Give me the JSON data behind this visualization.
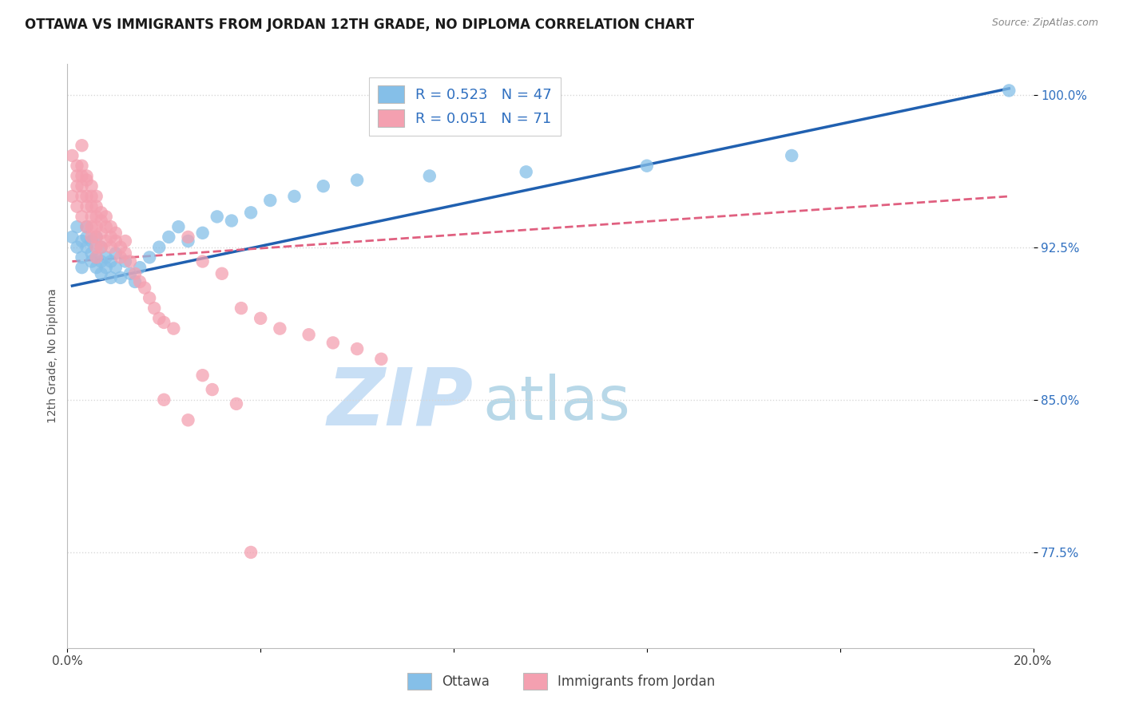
{
  "title": "OTTAWA VS IMMIGRANTS FROM JORDAN 12TH GRADE, NO DIPLOMA CORRELATION CHART",
  "source": "Source: ZipAtlas.com",
  "ylabel": "12th Grade, No Diploma",
  "xlim": [
    0.0,
    0.2
  ],
  "ylim": [
    0.728,
    1.015
  ],
  "yticks": [
    0.775,
    0.85,
    0.925,
    1.0
  ],
  "ytick_labels": [
    "77.5%",
    "85.0%",
    "92.5%",
    "100.0%"
  ],
  "xticks": [
    0.0,
    0.04,
    0.08,
    0.12,
    0.16,
    0.2
  ],
  "xtick_labels": [
    "0.0%",
    "",
    "",
    "",
    "",
    "20.0%"
  ],
  "legend_r_ottawa": "R = 0.523",
  "legend_n_ottawa": "N = 47",
  "legend_r_jordan": "R = 0.051",
  "legend_n_jordan": "N = 71",
  "ottawa_color": "#85bfe8",
  "jordan_color": "#f4a0b0",
  "ottawa_line_color": "#2060b0",
  "jordan_line_color": "#e06080",
  "background_color": "#ffffff",
  "grid_color": "#d8d8d8",
  "title_fontsize": 12,
  "source_fontsize": 9,
  "tick_fontsize": 11,
  "watermark_zip": "ZIP",
  "watermark_atlas": "atlas",
  "watermark_color_zip": "#c8dff5",
  "watermark_color_atlas": "#b8d8e8",
  "ottawa_x": [
    0.001,
    0.002,
    0.002,
    0.003,
    0.003,
    0.003,
    0.004,
    0.004,
    0.004,
    0.005,
    0.005,
    0.005,
    0.006,
    0.006,
    0.006,
    0.007,
    0.007,
    0.007,
    0.008,
    0.008,
    0.009,
    0.009,
    0.01,
    0.01,
    0.011,
    0.012,
    0.013,
    0.014,
    0.015,
    0.017,
    0.019,
    0.021,
    0.023,
    0.025,
    0.028,
    0.031,
    0.034,
    0.038,
    0.042,
    0.047,
    0.053,
    0.06,
    0.075,
    0.095,
    0.12,
    0.15,
    0.195
  ],
  "ottawa_y": [
    0.93,
    0.925,
    0.935,
    0.92,
    0.928,
    0.915,
    0.93,
    0.935,
    0.925,
    0.918,
    0.922,
    0.928,
    0.93,
    0.92,
    0.915,
    0.925,
    0.918,
    0.912,
    0.92,
    0.915,
    0.918,
    0.91,
    0.922,
    0.915,
    0.91,
    0.918,
    0.912,
    0.908,
    0.915,
    0.92,
    0.925,
    0.93,
    0.935,
    0.928,
    0.932,
    0.94,
    0.938,
    0.942,
    0.948,
    0.95,
    0.955,
    0.958,
    0.96,
    0.962,
    0.965,
    0.97,
    1.002
  ],
  "jordan_x": [
    0.001,
    0.001,
    0.002,
    0.002,
    0.002,
    0.002,
    0.003,
    0.003,
    0.003,
    0.003,
    0.003,
    0.003,
    0.004,
    0.004,
    0.004,
    0.004,
    0.004,
    0.005,
    0.005,
    0.005,
    0.005,
    0.005,
    0.005,
    0.006,
    0.006,
    0.006,
    0.006,
    0.006,
    0.006,
    0.006,
    0.007,
    0.007,
    0.007,
    0.007,
    0.008,
    0.008,
    0.008,
    0.009,
    0.009,
    0.009,
    0.01,
    0.01,
    0.011,
    0.011,
    0.012,
    0.012,
    0.013,
    0.014,
    0.015,
    0.016,
    0.017,
    0.018,
    0.019,
    0.02,
    0.022,
    0.025,
    0.028,
    0.032,
    0.036,
    0.04,
    0.044,
    0.05,
    0.055,
    0.06,
    0.065,
    0.02,
    0.025,
    0.028,
    0.03,
    0.035,
    0.038
  ],
  "jordan_y": [
    0.97,
    0.95,
    0.965,
    0.96,
    0.955,
    0.945,
    0.975,
    0.965,
    0.96,
    0.955,
    0.95,
    0.94,
    0.96,
    0.958,
    0.95,
    0.945,
    0.935,
    0.955,
    0.95,
    0.945,
    0.94,
    0.935,
    0.93,
    0.95,
    0.945,
    0.94,
    0.935,
    0.93,
    0.925,
    0.92,
    0.942,
    0.938,
    0.932,
    0.925,
    0.94,
    0.935,
    0.928,
    0.935,
    0.93,
    0.925,
    0.932,
    0.928,
    0.925,
    0.92,
    0.928,
    0.922,
    0.918,
    0.912,
    0.908,
    0.905,
    0.9,
    0.895,
    0.89,
    0.888,
    0.885,
    0.93,
    0.918,
    0.912,
    0.895,
    0.89,
    0.885,
    0.882,
    0.878,
    0.875,
    0.87,
    0.85,
    0.84,
    0.862,
    0.855,
    0.848,
    0.775
  ],
  "ottawa_trendline_x": [
    0.001,
    0.195
  ],
  "ottawa_trendline_y": [
    0.906,
    1.003
  ],
  "jordan_trendline_x": [
    0.001,
    0.195
  ],
  "jordan_trendline_y": [
    0.918,
    0.95
  ]
}
